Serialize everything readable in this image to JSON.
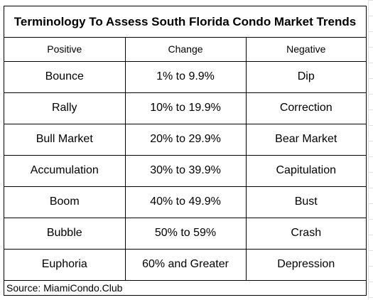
{
  "title": "Terminology To Assess South Florida Condo Market Trends",
  "headers": [
    "Positive",
    "Change",
    "Negative"
  ],
  "rows": [
    [
      "Bounce",
      "1% to 9.9%",
      "Dip"
    ],
    [
      "Rally",
      "10% to 19.9%",
      "Correction"
    ],
    [
      "Bull Market",
      "20% to 29.9%",
      "Bear Market"
    ],
    [
      "Accumulation",
      "30% to 39.9%",
      "Capitulation"
    ],
    [
      "Boom",
      "40% to 49.9%",
      "Bust"
    ],
    [
      "Bubble",
      "50% to 59%",
      "Crash"
    ],
    [
      "Euphoria",
      "60% and Greater",
      "Depression"
    ]
  ],
  "source": "Source: MiamiCondo.Club"
}
